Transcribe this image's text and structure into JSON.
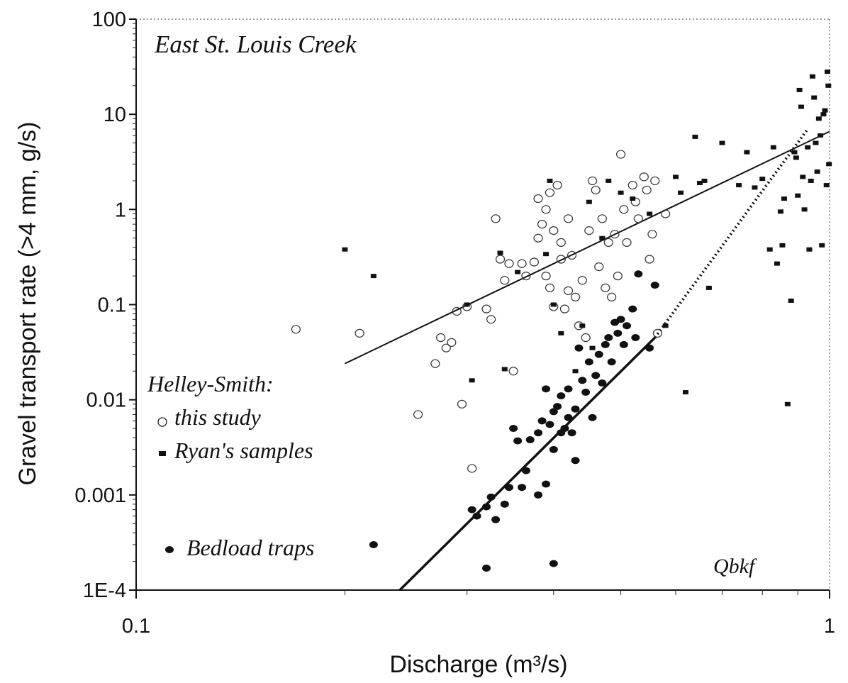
{
  "chart_data": {
    "type": "scatter",
    "title": "East St. Louis Creek",
    "xlabel": "Discharge (m³/s)",
    "ylabel": "Gravel transport rate (>4 mm, g/s)",
    "xscale": "log",
    "yscale": "log",
    "xlim": [
      0.1,
      1
    ],
    "ylim": [
      0.0001,
      100
    ],
    "x_ticks": [
      0.1,
      1
    ],
    "x_tick_labels": [
      "0.1",
      "1"
    ],
    "y_ticks": [
      0.0001,
      0.001,
      0.01,
      0.1,
      1,
      10,
      100
    ],
    "y_tick_labels": [
      "1E-4",
      "0.001",
      "0.01",
      "0.1",
      "1",
      "10",
      "100"
    ],
    "legend": {
      "header": "Helley-Smith:",
      "placement": "left",
      "entries": [
        {
          "label": "this study",
          "marker": "open-circle"
        },
        {
          "label": "Ryan's samples",
          "marker": "filled-square"
        },
        {
          "label": "Bedload traps",
          "marker": "filled-circle"
        }
      ]
    },
    "annotation": "Qbkf",
    "series": [
      {
        "name": "this study",
        "marker": "open-circle",
        "points": [
          [
            0.17,
            0.055
          ],
          [
            0.21,
            0.05
          ],
          [
            0.255,
            0.007
          ],
          [
            0.27,
            0.024
          ],
          [
            0.275,
            0.045
          ],
          [
            0.28,
            0.035
          ],
          [
            0.285,
            0.04
          ],
          [
            0.29,
            0.085
          ],
          [
            0.295,
            0.009
          ],
          [
            0.3,
            0.095
          ],
          [
            0.305,
            0.0019
          ],
          [
            0.32,
            0.09
          ],
          [
            0.325,
            0.07
          ],
          [
            0.33,
            0.8
          ],
          [
            0.335,
            0.3
          ],
          [
            0.34,
            0.18
          ],
          [
            0.345,
            0.27
          ],
          [
            0.35,
            0.02
          ],
          [
            0.36,
            0.27
          ],
          [
            0.365,
            0.2
          ],
          [
            0.375,
            0.28
          ],
          [
            0.38,
            1.3
          ],
          [
            0.38,
            0.5
          ],
          [
            0.385,
            0.7
          ],
          [
            0.39,
            1.0
          ],
          [
            0.39,
            0.2
          ],
          [
            0.395,
            1.5
          ],
          [
            0.395,
            0.15
          ],
          [
            0.4,
            0.6
          ],
          [
            0.4,
            0.095
          ],
          [
            0.405,
            1.8
          ],
          [
            0.41,
            0.45
          ],
          [
            0.41,
            0.3
          ],
          [
            0.415,
            0.09
          ],
          [
            0.42,
            0.14
          ],
          [
            0.42,
            0.8
          ],
          [
            0.425,
            0.33
          ],
          [
            0.43,
            0.12
          ],
          [
            0.435,
            0.06
          ],
          [
            0.44,
            0.18
          ],
          [
            0.445,
            0.045
          ],
          [
            0.45,
            0.6
          ],
          [
            0.455,
            2.0
          ],
          [
            0.46,
            1.6
          ],
          [
            0.465,
            0.25
          ],
          [
            0.47,
            0.8
          ],
          [
            0.475,
            0.15
          ],
          [
            0.48,
            0.45
          ],
          [
            0.485,
            0.12
          ],
          [
            0.49,
            0.55
          ],
          [
            0.495,
            0.2
          ],
          [
            0.5,
            3.8
          ],
          [
            0.505,
            1.0
          ],
          [
            0.51,
            0.45
          ],
          [
            0.52,
            1.8
          ],
          [
            0.525,
            1.2
          ],
          [
            0.53,
            0.8
          ],
          [
            0.54,
            2.2
          ],
          [
            0.545,
            1.6
          ],
          [
            0.55,
            0.3
          ],
          [
            0.555,
            0.55
          ],
          [
            0.56,
            2.0
          ],
          [
            0.565,
            0.05
          ],
          [
            0.58,
            0.9
          ]
        ]
      },
      {
        "name": "Ryan's samples",
        "marker": "filled-square",
        "points": [
          [
            0.2,
            0.38
          ],
          [
            0.22,
            0.2
          ],
          [
            0.3,
            0.1
          ],
          [
            0.305,
            0.016
          ],
          [
            0.335,
            0.35
          ],
          [
            0.34,
            0.021
          ],
          [
            0.355,
            0.22
          ],
          [
            0.39,
            0.34
          ],
          [
            0.395,
            2.0
          ],
          [
            0.4,
            0.1
          ],
          [
            0.41,
            0.05
          ],
          [
            0.43,
            0.02
          ],
          [
            0.44,
            0.06
          ],
          [
            0.45,
            1.2
          ],
          [
            0.455,
            0.035
          ],
          [
            0.47,
            0.5
          ],
          [
            0.48,
            2.0
          ],
          [
            0.5,
            1.5
          ],
          [
            0.52,
            1.3
          ],
          [
            0.55,
            0.9
          ],
          [
            0.58,
            0.06
          ],
          [
            0.6,
            2.2
          ],
          [
            0.61,
            1.5
          ],
          [
            0.62,
            0.012
          ],
          [
            0.64,
            5.8
          ],
          [
            0.65,
            1.9
          ],
          [
            0.66,
            2.0
          ],
          [
            0.67,
            0.15
          ],
          [
            0.7,
            5.0
          ],
          [
            0.74,
            1.8
          ],
          [
            0.76,
            4.0
          ],
          [
            0.78,
            1.7
          ],
          [
            0.8,
            2.1
          ],
          [
            0.82,
            0.38
          ],
          [
            0.83,
            4.5
          ],
          [
            0.84,
            0.27
          ],
          [
            0.85,
            0.95
          ],
          [
            0.855,
            0.42
          ],
          [
            0.86,
            1.3
          ],
          [
            0.87,
            0.009
          ],
          [
            0.88,
            0.11
          ],
          [
            0.89,
            4.0
          ],
          [
            0.895,
            3.5
          ],
          [
            0.9,
            1.4
          ],
          [
            0.905,
            18.0
          ],
          [
            0.91,
            12.0
          ],
          [
            0.915,
            2.2
          ],
          [
            0.92,
            1.0
          ],
          [
            0.93,
            4.5
          ],
          [
            0.935,
            0.38
          ],
          [
            0.94,
            2.0
          ],
          [
            0.945,
            25.0
          ],
          [
            0.95,
            15.0
          ],
          [
            0.955,
            5.0
          ],
          [
            0.96,
            2.5
          ],
          [
            0.965,
            9.0
          ],
          [
            0.97,
            6.0
          ],
          [
            0.975,
            0.42
          ],
          [
            0.98,
            10.0
          ],
          [
            0.985,
            11.0
          ],
          [
            0.99,
            1.8
          ],
          [
            0.993,
            28.0
          ],
          [
            0.996,
            20.0
          ],
          [
            0.998,
            3.0
          ]
        ]
      },
      {
        "name": "Bedload traps",
        "marker": "filled-circle",
        "points": [
          [
            0.22,
            0.0003
          ],
          [
            0.305,
            0.0007
          ],
          [
            0.31,
            0.0006
          ],
          [
            0.32,
            0.00075
          ],
          [
            0.325,
            0.00095
          ],
          [
            0.33,
            0.00055
          ],
          [
            0.32,
            0.00017
          ],
          [
            0.34,
            0.0008
          ],
          [
            0.345,
            0.0012
          ],
          [
            0.35,
            0.005
          ],
          [
            0.355,
            0.0037
          ],
          [
            0.36,
            0.0012
          ],
          [
            0.365,
            0.0018
          ],
          [
            0.37,
            0.0038
          ],
          [
            0.38,
            0.001
          ],
          [
            0.38,
            0.0045
          ],
          [
            0.385,
            0.006
          ],
          [
            0.39,
            0.013
          ],
          [
            0.39,
            0.0013
          ],
          [
            0.395,
            0.0055
          ],
          [
            0.4,
            0.0075
          ],
          [
            0.4,
            0.003
          ],
          [
            0.405,
            0.0085
          ],
          [
            0.41,
            0.011
          ],
          [
            0.41,
            0.0045
          ],
          [
            0.415,
            0.005
          ],
          [
            0.42,
            0.013
          ],
          [
            0.42,
            0.0065
          ],
          [
            0.425,
            0.0045
          ],
          [
            0.43,
            0.008
          ],
          [
            0.43,
            0.0023
          ],
          [
            0.435,
            0.035
          ],
          [
            0.44,
            0.016
          ],
          [
            0.445,
            0.012
          ],
          [
            0.45,
            0.025
          ],
          [
            0.455,
            0.0065
          ],
          [
            0.46,
            0.018
          ],
          [
            0.465,
            0.03
          ],
          [
            0.47,
            0.015
          ],
          [
            0.475,
            0.038
          ],
          [
            0.48,
            0.045
          ],
          [
            0.485,
            0.025
          ],
          [
            0.49,
            0.065
          ],
          [
            0.495,
            0.05
          ],
          [
            0.5,
            0.07
          ],
          [
            0.505,
            0.038
          ],
          [
            0.51,
            0.06
          ],
          [
            0.52,
            0.09
          ],
          [
            0.525,
            0.045
          ],
          [
            0.53,
            0.21
          ],
          [
            0.55,
            0.035
          ],
          [
            0.56,
            0.16
          ],
          [
            0.4,
            0.00019
          ]
        ]
      }
    ],
    "lines": [
      {
        "label": "Helley-Smith fit",
        "style": "solid-thin",
        "points": [
          [
            0.2,
            0.024
          ],
          [
            1.0,
            6.6
          ]
        ]
      },
      {
        "label": "Bedload traps fit",
        "style": "solid-thick",
        "points": [
          [
            0.24,
            0.0001
          ],
          [
            0.56,
            0.045
          ]
        ]
      },
      {
        "label": "Bedload traps fit (extrapolated)",
        "style": "dotted",
        "points": [
          [
            0.56,
            0.045
          ],
          [
            0.93,
            7.0
          ]
        ]
      }
    ]
  }
}
